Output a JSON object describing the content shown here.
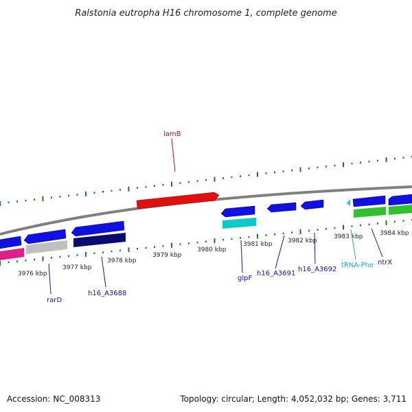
{
  "title": "Ralstonia eutropha H16 chromosome 1, complete genome",
  "footer": {
    "accession": "Accession: NC_008313",
    "summary": "Topology: circular; Length: 4,052,032 bp; Genes: 3,711"
  },
  "ticks": [
    "3976 kbp",
    "3977 kbp",
    "3978 kbp",
    "3979 kbp",
    "3980 kbp",
    "3981 kbp",
    "3982 kbp",
    "3983 kbp",
    "3984 kbp"
  ],
  "genes": {
    "lamB": "lamB",
    "rarD": "rarD",
    "h16_A3688": "h16_A3688",
    "glpF": "glpF",
    "h16_A3691": "h16_A3691",
    "h16_A3692": "h16_A3692",
    "tRNA_Phe": "tRNA-Phe",
    "ntrX": "ntrX"
  },
  "colors": {
    "backbone": "#808080",
    "tick_green": "#1a7a1a",
    "cds_blue": "#1010e0",
    "navy": "#0a0a70",
    "red": "#e01010",
    "cyan": "#10c8c8",
    "green": "#30c030",
    "magenta": "#e0208a",
    "gray": "#c0c0c0",
    "label_blue": "#1010b0",
    "label_red": "#b01010",
    "label_cyan": "#20a8c8"
  }
}
